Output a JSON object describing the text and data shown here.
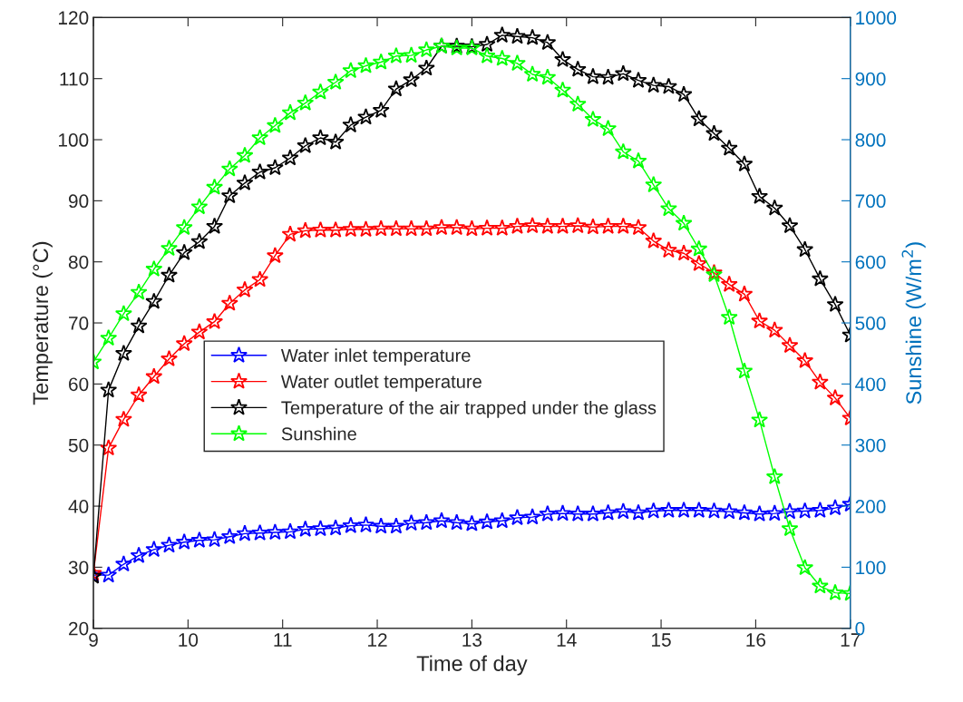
{
  "chart_data": {
    "type": "line",
    "xlabel": "Time of day",
    "ylabel": "Temperature (°C)",
    "y2label": "Sunshine (W/m$^{2}$)",
    "x": [
      9,
      9.16,
      9.32,
      9.48,
      9.64,
      9.8,
      9.96,
      10.12,
      10.28,
      10.44,
      10.6,
      10.76,
      10.92,
      11.08,
      11.24,
      11.4,
      11.56,
      11.72,
      11.88,
      12.04,
      12.2,
      12.36,
      12.52,
      12.68,
      12.84,
      13,
      13.16,
      13.32,
      13.48,
      13.64,
      13.8,
      13.96,
      14.12,
      14.28,
      14.44,
      14.6,
      14.76,
      14.92,
      15.08,
      15.24,
      15.4,
      15.56,
      15.72,
      15.88,
      16.04,
      16.2,
      16.36,
      16.52,
      16.68,
      16.84,
      17
    ],
    "xlim": [
      9,
      17
    ],
    "xticks": [
      9,
      10,
      11,
      12,
      13,
      14,
      15,
      16,
      17
    ],
    "ylim": [
      20,
      120
    ],
    "yticks": [
      20,
      30,
      40,
      50,
      60,
      70,
      80,
      90,
      100,
      110,
      120
    ],
    "y2lim": [
      0,
      1000
    ],
    "y2ticks": [
      0,
      100,
      200,
      300,
      400,
      500,
      600,
      700,
      800,
      900,
      1000
    ],
    "marker": "star",
    "line_style": "solid",
    "grid": false,
    "legend": "center",
    "series": [
      {
        "name": "Water inlet temperature",
        "color": "#0000ff",
        "values": [
          28.7,
          28.7,
          30.5,
          31.9,
          32.9,
          33.6,
          34.1,
          34.4,
          34.5,
          35.0,
          35.5,
          35.6,
          35.7,
          35.8,
          36.2,
          36.3,
          36.4,
          36.8,
          36.9,
          36.7,
          36.7,
          37.2,
          37.3,
          37.6,
          37.3,
          37.1,
          37.4,
          37.6,
          38.1,
          38.2,
          38.7,
          38.8,
          38.7,
          38.7,
          38.9,
          39.1,
          38.9,
          39.2,
          39.3,
          39.3,
          39.3,
          39.2,
          39.1,
          38.9,
          38.7,
          38.8,
          39.1,
          39.2,
          39.3,
          39.7,
          40.3
        ]
      },
      {
        "name": "Water outlet temperature",
        "color": "#ff0000",
        "values": [
          29,
          49.5,
          54.2,
          58.2,
          61.2,
          64.1,
          66.6,
          68.5,
          70.2,
          73.2,
          75.4,
          77.1,
          81.0,
          84.5,
          85.1,
          85.2,
          85.2,
          85.3,
          85.3,
          85.4,
          85.4,
          85.4,
          85.4,
          85.6,
          85.6,
          85.4,
          85.5,
          85.5,
          85.8,
          85.9,
          85.8,
          85.8,
          85.9,
          85.7,
          85.8,
          85.8,
          85.6,
          83.4,
          81.9,
          81.4,
          79.7,
          78.2,
          76.3,
          74.7,
          70.3,
          68.8,
          66.3,
          63.8,
          60.3,
          57.7,
          54.4
        ]
      },
      {
        "name": "Temperature of the air trapped under the glass",
        "color": "#000000",
        "values": [
          28.5,
          59,
          65,
          69.5,
          73.5,
          77.8,
          81.5,
          83.3,
          85.8,
          90.8,
          92.9,
          94.7,
          95.4,
          97.0,
          99.0,
          100.3,
          99.6,
          102.4,
          103.7,
          104.8,
          108.3,
          109.8,
          111.7,
          115.3,
          115.3,
          115.2,
          115.6,
          117.1,
          116.9,
          116.7,
          115.9,
          113.1,
          111.5,
          110.3,
          110.2,
          110.8,
          109.7,
          108.9,
          108.7,
          107.4,
          103.4,
          101.0,
          98.6,
          96.0,
          90.7,
          88.8,
          85.9,
          82.0,
          77.2,
          73.0,
          68
        ]
      },
      {
        "name": "Sunshine",
        "color": "#00ff00",
        "axis": "y2",
        "values": [
          436,
          475,
          515,
          550,
          588,
          622,
          656,
          690,
          722,
          752,
          774,
          803,
          823,
          844,
          860,
          878,
          894,
          913,
          921,
          927,
          937,
          938,
          947,
          953,
          950,
          950,
          937,
          933,
          925,
          907,
          902,
          881,
          858,
          833,
          818,
          780,
          765,
          726,
          687,
          663,
          621,
          579,
          509,
          421,
          341,
          248,
          163,
          99,
          69,
          58,
          57
        ]
      }
    ]
  }
}
